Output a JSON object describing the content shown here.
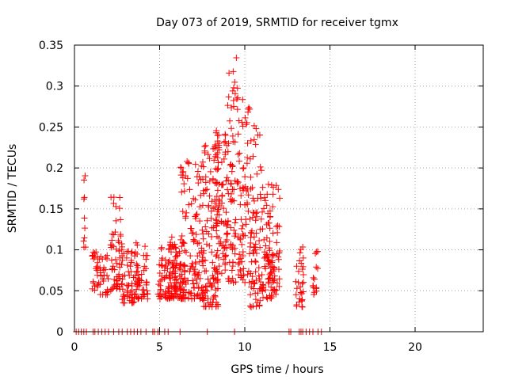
{
  "chart_data": {
    "type": "scatter",
    "title": "Day 073 of 2019, SRMTID for receiver tgmx",
    "xlabel": "GPS time / hours",
    "ylabel": "SRMTID / TECUs",
    "xlim": [
      0,
      24
    ],
    "ylim": [
      0,
      0.35
    ],
    "xticks": [
      0,
      5,
      10,
      15,
      20
    ],
    "yticks": [
      0,
      0.05,
      0.1,
      0.15,
      0.2,
      0.25,
      0.3,
      0.35
    ],
    "xtick_labels": [
      "0",
      "5",
      "10",
      "15",
      "20"
    ],
    "ytick_labels": [
      "0",
      "0.05",
      "0.1",
      "0.15",
      "0.2",
      "0.25",
      "0.3",
      "0.35"
    ],
    "grid": true,
    "marker": "+",
    "color": "#ff0000",
    "clusters": [
      {
        "x": [
          0.5,
          0.65
        ],
        "y": [
          0.1,
          0.21
        ],
        "n": 10,
        "seed": 1
      },
      {
        "x": [
          1.0,
          1.5
        ],
        "y": [
          0.05,
          0.1
        ],
        "n": 25,
        "seed": 2
      },
      {
        "x": [
          1.5,
          2.0
        ],
        "y": [
          0.045,
          0.1
        ],
        "n": 25,
        "seed": 3
      },
      {
        "x": [
          2.1,
          2.8
        ],
        "y": [
          0.05,
          0.165
        ],
        "n": 60,
        "seed": 4
      },
      {
        "x": [
          2.8,
          3.5
        ],
        "y": [
          0.035,
          0.1
        ],
        "n": 45,
        "seed": 5
      },
      {
        "x": [
          3.5,
          4.3
        ],
        "y": [
          0.04,
          0.115
        ],
        "n": 55,
        "seed": 6
      },
      {
        "x": [
          4.9,
          6.0
        ],
        "y": [
          0.04,
          0.11
        ],
        "n": 70,
        "seed": 7
      },
      {
        "x": [
          5.5,
          6.5
        ],
        "y": [
          0.04,
          0.12
        ],
        "n": 80,
        "seed": 8
      },
      {
        "x": [
          6.2,
          7.6
        ],
        "y": [
          0.04,
          0.21
        ],
        "n": 130,
        "seed": 9
      },
      {
        "x": [
          7.5,
          8.5
        ],
        "y": [
          0.03,
          0.24
        ],
        "n": 120,
        "seed": 10
      },
      {
        "x": [
          8.3,
          9.0
        ],
        "y": [
          0.07,
          0.25
        ],
        "n": 80,
        "seed": 11
      },
      {
        "x": [
          9.0,
          9.6
        ],
        "y": [
          0.06,
          0.345
        ],
        "n": 70,
        "seed": 12
      },
      {
        "x": [
          9.6,
          10.3
        ],
        "y": [
          0.06,
          0.285
        ],
        "n": 70,
        "seed": 13
      },
      {
        "x": [
          10.3,
          11.0
        ],
        "y": [
          0.03,
          0.26
        ],
        "n": 80,
        "seed": 14
      },
      {
        "x": [
          11.0,
          12.1
        ],
        "y": [
          0.04,
          0.18
        ],
        "n": 110,
        "seed": 15
      },
      {
        "x": [
          13.0,
          13.5
        ],
        "y": [
          0.03,
          0.11
        ],
        "n": 30,
        "seed": 16
      },
      {
        "x": [
          14.0,
          14.3
        ],
        "y": [
          0.045,
          0.1
        ],
        "n": 15,
        "seed": 17
      }
    ],
    "zero_points_x": [
      0.1,
      0.25,
      0.4,
      0.55,
      0.7,
      1.1,
      1.2,
      1.4,
      1.6,
      1.8,
      2.0,
      2.3,
      2.6,
      2.8,
      3.1,
      3.3,
      3.5,
      3.7,
      3.9,
      4.2,
      4.6,
      4.7,
      4.9,
      5.0,
      5.3,
      5.5,
      6.2,
      7.8,
      9.4,
      12.6,
      12.7,
      13.2,
      13.3,
      13.4,
      13.6,
      13.8,
      14.0,
      14.3,
      14.5
    ]
  }
}
